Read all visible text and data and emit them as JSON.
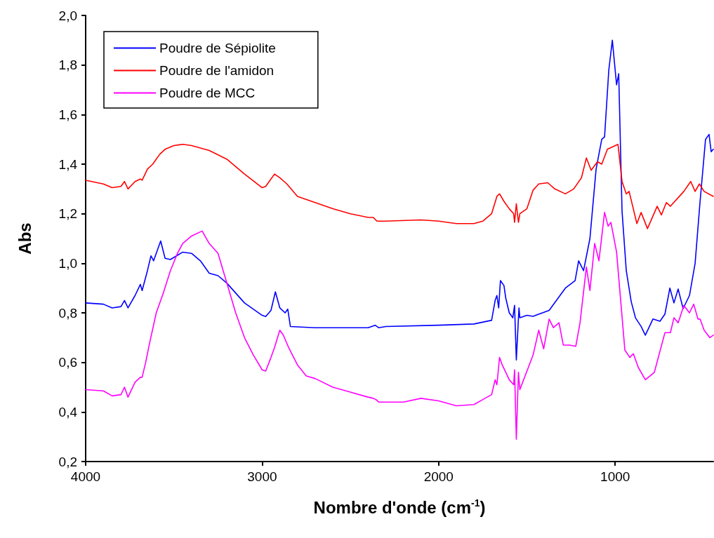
{
  "chart_data": {
    "type": "line",
    "xlabel": "Nombre d'onde (cm$^{-1}$)",
    "ylabel": "Abs",
    "xlim": [
      4000,
      444
    ],
    "xticks": [
      4000,
      3000,
      2000,
      1000
    ],
    "ylim": [
      0.2,
      2.0
    ],
    "yticks": [
      {
        "value": 0.2,
        "label": "0,2"
      },
      {
        "value": 0.4,
        "label": "0,4"
      },
      {
        "value": 0.6,
        "label": "0,6"
      },
      {
        "value": 0.8,
        "label": "0,8"
      },
      {
        "value": 1.0,
        "label": "1,0"
      },
      {
        "value": 1.2,
        "label": "1,2"
      },
      {
        "value": 1.4,
        "label": "1,4"
      },
      {
        "value": 1.6,
        "label": "1,6"
      },
      {
        "value": 1.8,
        "label": "1,8"
      },
      {
        "value": 2.0,
        "label": "2,0"
      }
    ],
    "grid": false,
    "legend": "top left",
    "marker": "none",
    "line_style": "solid",
    "series": [
      {
        "name": "Poudre de Sépiolite",
        "color": "#0000ff",
        "x": [
          4000,
          3900,
          3850,
          3800,
          3780,
          3760,
          3720,
          3690,
          3680,
          3650,
          3630,
          3615,
          3575,
          3550,
          3520,
          3450,
          3400,
          3350,
          3300,
          3250,
          3200,
          3100,
          3000,
          2980,
          2950,
          2925,
          2900,
          2870,
          2855,
          2840,
          2700,
          2400,
          2360,
          2340,
          2300,
          2000,
          1800,
          1700,
          1680,
          1670,
          1660,
          1650,
          1630,
          1620,
          1600,
          1580,
          1570,
          1560,
          1545,
          1540,
          1500,
          1465,
          1374,
          1282,
          1227,
          1207,
          1179,
          1143,
          1108,
          1076,
          1060,
          1036,
          1016,
          992,
          980,
          961,
          937,
          909,
          885,
          853,
          829,
          786,
          746,
          718,
          690,
          667,
          643,
          615,
          579,
          547,
          520,
          488,
          468,
          456,
          444
        ],
        "values": [
          0.84,
          0.835,
          0.82,
          0.825,
          0.85,
          0.82,
          0.87,
          0.915,
          0.89,
          0.97,
          1.03,
          1.01,
          1.09,
          1.02,
          1.015,
          1.045,
          1.04,
          1.01,
          0.96,
          0.95,
          0.92,
          0.84,
          0.79,
          0.785,
          0.81,
          0.885,
          0.82,
          0.8,
          0.815,
          0.745,
          0.74,
          0.74,
          0.75,
          0.74,
          0.745,
          0.75,
          0.755,
          0.77,
          0.85,
          0.87,
          0.82,
          0.93,
          0.91,
          0.86,
          0.8,
          0.78,
          0.83,
          0.61,
          0.82,
          0.78,
          0.79,
          0.786,
          0.81,
          0.9,
          0.93,
          1.01,
          0.97,
          1.1,
          1.38,
          1.5,
          1.51,
          1.78,
          1.9,
          1.72,
          1.765,
          1.21,
          0.97,
          0.845,
          0.78,
          0.745,
          0.71,
          0.775,
          0.766,
          0.795,
          0.9,
          0.84,
          0.896,
          0.817,
          0.87,
          1.0,
          1.24,
          1.5,
          1.52,
          1.45,
          1.46
        ]
      },
      {
        "name": "Poudre de l'amidon",
        "color": "#ff0000",
        "x": [
          4000,
          3900,
          3850,
          3800,
          3780,
          3760,
          3720,
          3690,
          3680,
          3650,
          3620,
          3580,
          3550,
          3500,
          3450,
          3400,
          3300,
          3200,
          3100,
          3000,
          2980,
          2930,
          2900,
          2860,
          2800,
          2700,
          2600,
          2500,
          2400,
          2370,
          2350,
          2300,
          2100,
          2000,
          1900,
          1800,
          1750,
          1700,
          1670,
          1655,
          1630,
          1600,
          1575,
          1570,
          1560,
          1548,
          1540,
          1500,
          1465,
          1433,
          1382,
          1342,
          1282,
          1235,
          1191,
          1163,
          1136,
          1100,
          1076,
          1044,
          984,
          961,
          937,
          921,
          877,
          853,
          817,
          762,
          738,
          710,
          687,
          611,
          572,
          547,
          523,
          496,
          444
        ],
        "values": [
          1.335,
          1.32,
          1.305,
          1.31,
          1.33,
          1.3,
          1.33,
          1.34,
          1.335,
          1.38,
          1.4,
          1.44,
          1.46,
          1.475,
          1.48,
          1.475,
          1.455,
          1.42,
          1.36,
          1.305,
          1.31,
          1.36,
          1.345,
          1.32,
          1.27,
          1.245,
          1.22,
          1.2,
          1.185,
          1.185,
          1.17,
          1.17,
          1.175,
          1.17,
          1.16,
          1.16,
          1.17,
          1.2,
          1.27,
          1.28,
          1.25,
          1.22,
          1.2,
          1.165,
          1.24,
          1.165,
          1.2,
          1.22,
          1.295,
          1.32,
          1.325,
          1.3,
          1.28,
          1.3,
          1.345,
          1.425,
          1.375,
          1.41,
          1.4,
          1.46,
          1.48,
          1.33,
          1.28,
          1.29,
          1.16,
          1.205,
          1.14,
          1.23,
          1.195,
          1.245,
          1.23,
          1.29,
          1.33,
          1.29,
          1.32,
          1.29,
          1.27
        ]
      },
      {
        "name": "Poudre de MCC",
        "color": "#ff00ff",
        "x": [
          4000,
          3900,
          3850,
          3800,
          3780,
          3760,
          3720,
          3690,
          3680,
          3660,
          3640,
          3600,
          3560,
          3520,
          3480,
          3450,
          3400,
          3340,
          3300,
          3250,
          3200,
          3150,
          3100,
          3050,
          3000,
          2980,
          2950,
          2930,
          2900,
          2880,
          2850,
          2800,
          2750,
          2700,
          2600,
          2500,
          2400,
          2370,
          2355,
          2340,
          2300,
          2200,
          2100,
          2000,
          1900,
          1800,
          1750,
          1700,
          1680,
          1670,
          1655,
          1640,
          1600,
          1575,
          1570,
          1560,
          1548,
          1540,
          1465,
          1433,
          1405,
          1374,
          1350,
          1318,
          1294,
          1258,
          1223,
          1199,
          1163,
          1143,
          1116,
          1092,
          1060,
          1040,
          1024,
          992,
          945,
          917,
          897,
          869,
          829,
          778,
          718,
          687,
          667,
          643,
          611,
          579,
          555,
          531,
          519,
          496,
          464,
          444
        ],
        "values": [
          0.49,
          0.485,
          0.465,
          0.47,
          0.5,
          0.46,
          0.52,
          0.54,
          0.54,
          0.6,
          0.67,
          0.8,
          0.88,
          0.97,
          1.04,
          1.08,
          1.11,
          1.13,
          1.08,
          1.04,
          0.92,
          0.8,
          0.7,
          0.63,
          0.57,
          0.565,
          0.62,
          0.66,
          0.73,
          0.71,
          0.66,
          0.59,
          0.545,
          0.535,
          0.5,
          0.48,
          0.46,
          0.455,
          0.45,
          0.44,
          0.44,
          0.44,
          0.455,
          0.445,
          0.425,
          0.43,
          0.45,
          0.47,
          0.53,
          0.51,
          0.62,
          0.59,
          0.53,
          0.51,
          0.57,
          0.29,
          0.56,
          0.49,
          0.63,
          0.73,
          0.655,
          0.775,
          0.74,
          0.76,
          0.67,
          0.67,
          0.665,
          0.76,
          0.985,
          0.89,
          1.08,
          1.01,
          1.205,
          1.15,
          1.165,
          1.045,
          0.65,
          0.62,
          0.635,
          0.58,
          0.53,
          0.56,
          0.72,
          0.72,
          0.78,
          0.76,
          0.83,
          0.8,
          0.835,
          0.775,
          0.775,
          0.73,
          0.7,
          0.71
        ]
      }
    ]
  }
}
